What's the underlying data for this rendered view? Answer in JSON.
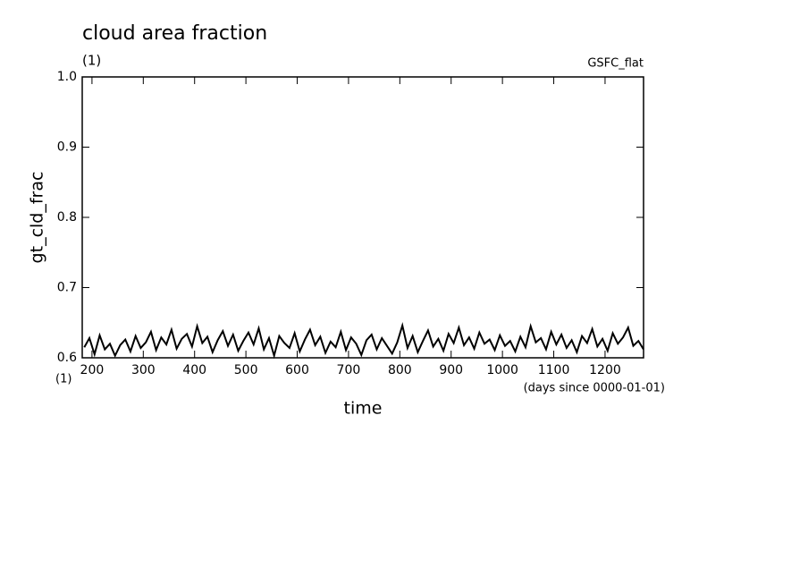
{
  "chart_data": {
    "type": "line",
    "title": "cloud area fraction",
    "subtitle": "(1)",
    "annotation": "GSFC_flat",
    "x_unit": "(1)",
    "x_units_note": "(days since 0000-01-01)",
    "x_label": "time",
    "y_label": "gt_cld_frac",
    "xlim": [
      181,
      1275
    ],
    "xticks": [
      200,
      300,
      400,
      500,
      600,
      700,
      800,
      900,
      1000,
      1100,
      1200
    ],
    "ylim": [
      0.6,
      1.0
    ],
    "yticks": [
      0.6,
      0.7,
      0.8,
      0.9,
      {
        "value": 1.0,
        "label": "1.0"
      }
    ],
    "grid": false,
    "series": [
      {
        "color": "#000000",
        "x": [
          185,
          195,
          205,
          215,
          225,
          235,
          245,
          255,
          265,
          275,
          285,
          295,
          305,
          315,
          325,
          335,
          345,
          355,
          365,
          375,
          385,
          395,
          405,
          415,
          425,
          435,
          445,
          455,
          465,
          475,
          485,
          495,
          505,
          515,
          525,
          535,
          545,
          555,
          565,
          575,
          585,
          595,
          605,
          615,
          625,
          635,
          645,
          655,
          665,
          675,
          685,
          695,
          705,
          715,
          725,
          735,
          745,
          755,
          765,
          775,
          785,
          795,
          805,
          815,
          825,
          835,
          845,
          855,
          865,
          875,
          885,
          895,
          905,
          915,
          925,
          935,
          945,
          955,
          965,
          975,
          985,
          995,
          1005,
          1015,
          1025,
          1035,
          1045,
          1055,
          1065,
          1075,
          1085,
          1095,
          1105,
          1115,
          1125,
          1135,
          1145,
          1155,
          1165,
          1175,
          1185,
          1195,
          1205,
          1215,
          1225,
          1235,
          1245,
          1255,
          1265,
          1275
        ],
        "values": [
          0.615,
          0.628,
          0.605,
          0.632,
          0.612,
          0.62,
          0.603,
          0.618,
          0.626,
          0.609,
          0.631,
          0.614,
          0.622,
          0.637,
          0.611,
          0.629,
          0.619,
          0.64,
          0.613,
          0.627,
          0.634,
          0.616,
          0.645,
          0.621,
          0.63,
          0.608,
          0.625,
          0.638,
          0.617,
          0.633,
          0.61,
          0.624,
          0.636,
          0.619,
          0.642,
          0.612,
          0.628,
          0.603,
          0.631,
          0.621,
          0.614,
          0.635,
          0.609,
          0.626,
          0.64,
          0.618,
          0.63,
          0.607,
          0.623,
          0.615,
          0.637,
          0.611,
          0.629,
          0.62,
          0.604,
          0.625,
          0.633,
          0.612,
          0.628,
          0.617,
          0.606,
          0.622,
          0.646,
          0.614,
          0.631,
          0.608,
          0.624,
          0.639,
          0.616,
          0.627,
          0.61,
          0.634,
          0.621,
          0.643,
          0.618,
          0.629,
          0.613,
          0.636,
          0.62,
          0.626,
          0.611,
          0.632,
          0.617,
          0.624,
          0.609,
          0.63,
          0.615,
          0.645,
          0.622,
          0.628,
          0.612,
          0.637,
          0.619,
          0.633,
          0.614,
          0.625,
          0.608,
          0.631,
          0.621,
          0.641,
          0.616,
          0.627,
          0.61,
          0.635,
          0.62,
          0.629,
          0.643,
          0.617,
          0.624,
          0.612
        ]
      }
    ]
  }
}
